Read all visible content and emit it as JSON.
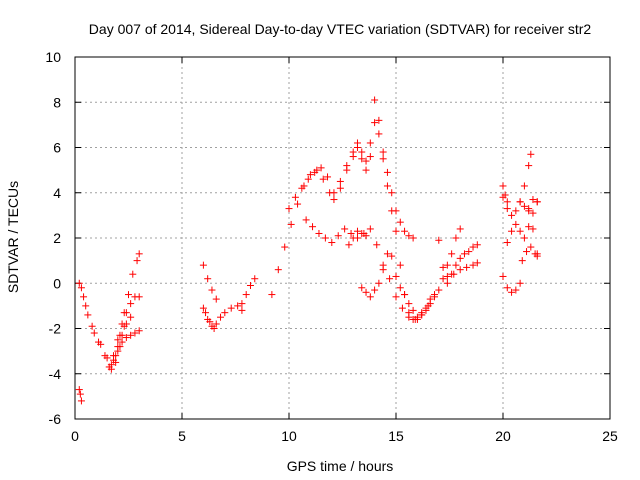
{
  "chart_data": {
    "type": "scatter",
    "title": "Day 007 of 2014, Sidereal Day-to-day VTEC variation (SDTVAR) for receiver str2",
    "xlabel": "GPS time / hours",
    "ylabel": "SDTVAR / TECUs",
    "xlim": [
      0,
      25
    ],
    "ylim": [
      -6,
      10
    ],
    "xticks": [
      0,
      5,
      10,
      15,
      20,
      25
    ],
    "yticks": [
      -6,
      -4,
      -2,
      0,
      2,
      4,
      6,
      8,
      10
    ],
    "grid": true,
    "marker": "+",
    "series": [
      {
        "name": "SDTVAR",
        "color": "#ff0000",
        "tracks": [
          {
            "x": [
              0.2,
              0.25,
              0.3
            ],
            "y": [
              -4.7,
              -4.9,
              -5.2
            ]
          },
          {
            "x": [
              0.2,
              0.4,
              0.6,
              0.9,
              1.2,
              1.5,
              1.7,
              1.9,
              2.1,
              2.3,
              2.5,
              2.7,
              2.9,
              3.0
            ],
            "y": [
              0.0,
              -0.6,
              -1.4,
              -2.2,
              -2.7,
              -3.3,
              -3.6,
              -3.2,
              -2.3,
              -1.3,
              -0.5,
              0.4,
              1.0,
              1.3
            ]
          },
          {
            "x": [
              0.3,
              0.5,
              0.8,
              1.1,
              1.4,
              1.7,
              1.9,
              2.1,
              2.3
            ],
            "y": [
              -0.2,
              -1.0,
              -1.9,
              -2.6,
              -3.2,
              -3.8,
              -3.5,
              -2.8,
              -1.9
            ]
          },
          {
            "x": [
              1.6,
              1.8,
              2.0,
              2.2,
              2.4,
              2.6,
              2.8,
              3.0
            ],
            "y": [
              -3.7,
              -3.2,
              -2.8,
              -2.6,
              -2.4,
              -2.3,
              -2.2,
              -2.1
            ]
          },
          {
            "x": [
              1.8,
              2.0,
              2.2,
              2.4,
              2.6,
              2.8,
              3.0
            ],
            "y": [
              -3.4,
              -2.5,
              -1.8,
              -1.3,
              -0.9,
              -0.6,
              -0.6
            ]
          },
          {
            "x": [
              2.0,
              2.2,
              2.4,
              2.6
            ],
            "y": [
              -3.0,
              -2.3,
              -1.8,
              -1.5
            ]
          },
          {
            "x": [
              6.0,
              6.2,
              6.4,
              6.6,
              6.8,
              7.0,
              7.3,
              7.6,
              7.8
            ],
            "y": [
              -1.1,
              -1.6,
              -1.9,
              -1.8,
              -1.5,
              -1.3,
              -1.1,
              -1.0,
              -1.2
            ]
          },
          {
            "x": [
              6.0,
              6.2,
              6.4,
              6.6
            ],
            "y": [
              0.8,
              0.2,
              -0.3,
              -0.7
            ]
          },
          {
            "x": [
              6.1,
              6.3,
              6.5
            ],
            "y": [
              -1.3,
              -1.7,
              -2.0
            ]
          },
          {
            "x": [
              7.8,
              8.0,
              8.2,
              8.4
            ],
            "y": [
              -0.9,
              -0.5,
              -0.1,
              0.2
            ]
          },
          {
            "x": [
              9.2,
              9.5,
              9.8,
              10.1,
              10.4,
              10.7,
              11.0,
              11.3,
              11.6,
              11.9,
              12.1,
              12.4,
              12.7,
              13.0,
              13.2,
              13.4,
              13.6,
              13.8,
              14.0,
              14.2,
              14.4,
              14.6,
              14.8,
              15.0,
              15.2,
              15.4,
              15.6,
              15.8,
              16.0,
              16.2,
              16.4,
              16.6
            ],
            "y": [
              -0.5,
              0.6,
              1.6,
              2.6,
              3.5,
              4.3,
              4.8,
              5.0,
              4.6,
              4.0,
              3.7,
              4.2,
              5.0,
              5.6,
              6.2,
              5.8,
              5.4,
              6.2,
              7.1,
              6.6,
              5.5,
              4.3,
              3.2,
              2.3,
              0.8,
              -0.5,
              -1.3,
              -1.6,
              -1.5,
              -1.3,
              -1.1,
              -0.7
            ]
          },
          {
            "x": [
              10.0,
              10.3,
              10.6,
              10.9,
              11.2,
              11.5,
              11.8,
              12.1,
              12.4,
              12.7,
              13.0,
              13.2,
              13.4,
              13.6,
              13.8,
              14.0,
              14.2,
              14.4,
              14.6,
              14.8,
              15.0,
              15.2,
              15.4,
              15.6,
              15.8
            ],
            "y": [
              3.3,
              3.8,
              4.2,
              4.6,
              4.9,
              5.1,
              4.7,
              4.0,
              4.5,
              5.2,
              5.8,
              6.0,
              5.5,
              5.0,
              5.6,
              8.1,
              7.2,
              5.8,
              4.9,
              4.0,
              3.2,
              2.7,
              2.3,
              2.1,
              2.0
            ]
          },
          {
            "x": [
              10.8,
              11.1,
              11.4,
              11.7,
              12.0,
              12.3,
              12.6,
              12.9,
              13.2,
              13.5,
              13.8,
              14.1,
              14.4,
              14.7,
              15.0,
              15.3,
              15.6,
              15.9,
              16.2,
              16.5,
              16.8
            ],
            "y": [
              2.8,
              2.5,
              2.2,
              2.0,
              1.8,
              2.1,
              2.4,
              2.2,
              2.0,
              2.2,
              2.4,
              1.7,
              0.8,
              0.2,
              -0.6,
              -1.1,
              -1.5,
              -1.6,
              -1.4,
              -1.0,
              -0.6
            ]
          },
          {
            "x": [
              13.4,
              13.6,
              13.8,
              14.0,
              14.2,
              14.4,
              14.6,
              14.8,
              15.0,
              15.2,
              15.4,
              15.6,
              15.8,
              16.0,
              16.2,
              16.4,
              16.6,
              16.8,
              17.0
            ],
            "y": [
              -0.2,
              -0.4,
              -0.6,
              -0.3,
              0.0,
              0.6,
              1.3,
              1.2,
              0.3,
              -0.2,
              -0.5,
              -0.9,
              -1.2,
              -1.6,
              -1.4,
              -1.2,
              -0.9,
              -0.5,
              -0.3
            ]
          },
          {
            "x": [
              12.8,
              13.0,
              13.2,
              13.4,
              13.6
            ],
            "y": [
              1.7,
              2.0,
              2.3,
              2.2,
              2.1
            ]
          },
          {
            "x": [
              17.0,
              17.2,
              17.4,
              17.6,
              17.8,
              18.0,
              18.2,
              18.4,
              18.6,
              18.8
            ],
            "y": [
              1.9,
              0.7,
              0.3,
              0.4,
              0.8,
              1.1,
              1.3,
              1.4,
              1.6,
              1.7
            ]
          },
          {
            "x": [
              17.2,
              17.4,
              17.6,
              17.8,
              18.0
            ],
            "y": [
              0.2,
              0.8,
              1.3,
              2.0,
              2.4
            ]
          },
          {
            "x": [
              17.4,
              17.7,
              18.0,
              18.3,
              18.6,
              18.8
            ],
            "y": [
              0.0,
              0.4,
              0.6,
              0.7,
              0.8,
              0.9
            ]
          },
          {
            "x": [
              20.0,
              20.2,
              20.4,
              20.6,
              20.8,
              21.0,
              21.2,
              21.4,
              21.6
            ],
            "y": [
              3.8,
              3.3,
              3.0,
              3.2,
              3.6,
              3.4,
              3.2,
              2.4,
              1.3
            ]
          },
          {
            "x": [
              20.0,
              20.1,
              20.2
            ],
            "y": [
              4.3,
              3.9,
              3.6
            ]
          },
          {
            "x": [
              20.2,
              20.4,
              20.6,
              20.8,
              21.0,
              21.2,
              21.4,
              21.6
            ],
            "y": [
              1.8,
              2.3,
              2.6,
              2.3,
              2.0,
              2.5,
              3.1,
              3.6
            ]
          },
          {
            "x": [
              20.0,
              20.2,
              20.4,
              20.6,
              20.8
            ],
            "y": [
              0.3,
              -0.2,
              -0.4,
              -0.3,
              0.0
            ]
          },
          {
            "x": [
              20.8,
              21.0,
              21.2,
              21.3
            ],
            "y": [
              3.6,
              4.3,
              5.2,
              5.7
            ]
          },
          {
            "x": [
              20.9,
              21.1,
              21.3,
              21.5,
              21.6
            ],
            "y": [
              1.0,
              1.4,
              1.6,
              1.3,
              1.2
            ]
          },
          {
            "x": [
              21.2,
              21.4,
              21.6
            ],
            "y": [
              3.3,
              3.7,
              3.6
            ]
          }
        ]
      }
    ]
  }
}
